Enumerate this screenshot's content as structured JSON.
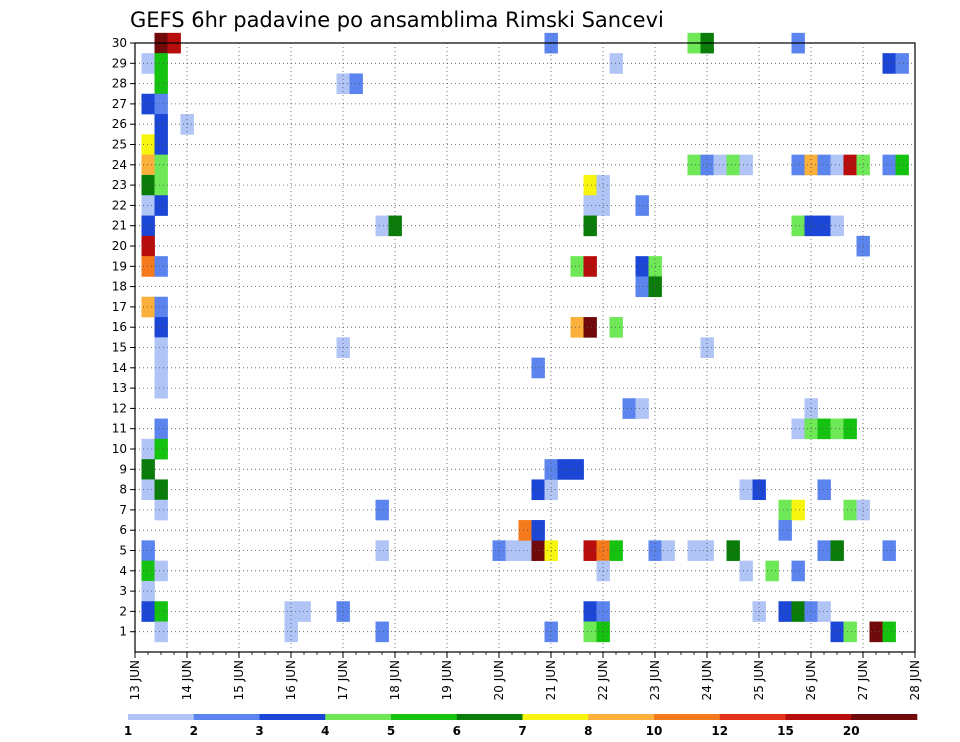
{
  "chart_data": {
    "type": "heatmap",
    "title": "GEFS 6hr padavine po ansamblima Rimski Sancevi",
    "x_tick_labels": [
      "13 JUN",
      "14 JUN",
      "15 JUN",
      "16 JUN",
      "17 JUN",
      "18 JUN",
      "19 JUN",
      "20 JUN",
      "21 JUN",
      "22 JUN",
      "23 JUN",
      "24 JUN",
      "25 JUN",
      "26 JUN",
      "27 JUN",
      "28 JUN"
    ],
    "y_tick_labels": [
      "1",
      "2",
      "3",
      "4",
      "5",
      "6",
      "7",
      "8",
      "9",
      "10",
      "11",
      "12",
      "13",
      "14",
      "15",
      "16",
      "17",
      "18",
      "19",
      "20",
      "21",
      "22",
      "23",
      "24",
      "25",
      "26",
      "27",
      "28",
      "29",
      "30"
    ],
    "xlim": [
      "2022-06-13T00",
      "2022-06-28T00"
    ],
    "time_step_hours": 6,
    "ylim": [
      0,
      30
    ],
    "grid": true,
    "colorbar": {
      "labels": [
        "1",
        "2",
        "3",
        "4",
        "5",
        "6",
        "7",
        "8",
        "10",
        "12",
        "15",
        "20"
      ],
      "bounds": [
        1,
        2,
        3,
        4,
        5,
        6,
        7,
        8,
        10,
        12,
        15,
        20,
        25
      ],
      "colors": [
        "#b0c4f5",
        "#5b84ee",
        "#1b46d6",
        "#6ee856",
        "#16c210",
        "#0a7c0a",
        "#f7f40f",
        "#fbb03b",
        "#f57a1b",
        "#e5321b",
        "#b80d0d",
        "#700a0a"
      ]
    },
    "cells": [
      {
        "t": "2022-06-13T12",
        "m": 30,
        "c": 11
      },
      {
        "t": "2022-06-13T18",
        "m": 30,
        "c": 10
      },
      {
        "t": "2022-06-13T06",
        "m": 29,
        "c": 0
      },
      {
        "t": "2022-06-13T12",
        "m": 29,
        "c": 4
      },
      {
        "t": "2022-06-13T12",
        "m": 28,
        "c": 4
      },
      {
        "t": "2022-06-13T06",
        "m": 27,
        "c": 2
      },
      {
        "t": "2022-06-13T12",
        "m": 27,
        "c": 1
      },
      {
        "t": "2022-06-13T12",
        "m": 26,
        "c": 2
      },
      {
        "t": "2022-06-14T00",
        "m": 26,
        "c": 0
      },
      {
        "t": "2022-06-13T06",
        "m": 25,
        "c": 6
      },
      {
        "t": "2022-06-13T12",
        "m": 25,
        "c": 2
      },
      {
        "t": "2022-06-13T06",
        "m": 24,
        "c": 7
      },
      {
        "t": "2022-06-13T12",
        "m": 24,
        "c": 3
      },
      {
        "t": "2022-06-13T06",
        "m": 23,
        "c": 5
      },
      {
        "t": "2022-06-13T12",
        "m": 23,
        "c": 3
      },
      {
        "t": "2022-06-13T06",
        "m": 22,
        "c": 0
      },
      {
        "t": "2022-06-13T12",
        "m": 22,
        "c": 2
      },
      {
        "t": "2022-06-13T06",
        "m": 21,
        "c": 2
      },
      {
        "t": "2022-06-13T06",
        "m": 20,
        "c": 10
      },
      {
        "t": "2022-06-13T06",
        "m": 19,
        "c": 8
      },
      {
        "t": "2022-06-13T12",
        "m": 19,
        "c": 1
      },
      {
        "t": "2022-06-13T06",
        "m": 17,
        "c": 7
      },
      {
        "t": "2022-06-13T12",
        "m": 17,
        "c": 1
      },
      {
        "t": "2022-06-13T12",
        "m": 16,
        "c": 2
      },
      {
        "t": "2022-06-13T12",
        "m": 15,
        "c": 0
      },
      {
        "t": "2022-06-13T12",
        "m": 14,
        "c": 0
      },
      {
        "t": "2022-06-13T12",
        "m": 13,
        "c": 0
      },
      {
        "t": "2022-06-13T12",
        "m": 11,
        "c": 1
      },
      {
        "t": "2022-06-13T06",
        "m": 10,
        "c": 0
      },
      {
        "t": "2022-06-13T12",
        "m": 10,
        "c": 4
      },
      {
        "t": "2022-06-13T06",
        "m": 9,
        "c": 5
      },
      {
        "t": "2022-06-13T06",
        "m": 8,
        "c": 0
      },
      {
        "t": "2022-06-13T12",
        "m": 8,
        "c": 5
      },
      {
        "t": "2022-06-13T12",
        "m": 7,
        "c": 0
      },
      {
        "t": "2022-06-13T06",
        "m": 5,
        "c": 1
      },
      {
        "t": "2022-06-13T06",
        "m": 4,
        "c": 4
      },
      {
        "t": "2022-06-13T12",
        "m": 4,
        "c": 0
      },
      {
        "t": "2022-06-13T06",
        "m": 3,
        "c": 0
      },
      {
        "t": "2022-06-13T06",
        "m": 2,
        "c": 2
      },
      {
        "t": "2022-06-13T12",
        "m": 2,
        "c": 4
      },
      {
        "t": "2022-06-13T12",
        "m": 1,
        "c": 0
      },
      {
        "t": "2022-06-16T00",
        "m": 2,
        "c": 0
      },
      {
        "t": "2022-06-16T06",
        "m": 2,
        "c": 0
      },
      {
        "t": "2022-06-16T00",
        "m": 1,
        "c": 0
      },
      {
        "t": "2022-06-17T00",
        "m": 28,
        "c": 0
      },
      {
        "t": "2022-06-17T06",
        "m": 28,
        "c": 1
      },
      {
        "t": "2022-06-17T00",
        "m": 15,
        "c": 0
      },
      {
        "t": "2022-06-17T00",
        "m": 2,
        "c": 1
      },
      {
        "t": "2022-06-17T18",
        "m": 21,
        "c": 0
      },
      {
        "t": "2022-06-18T00",
        "m": 21,
        "c": 5
      },
      {
        "t": "2022-06-17T18",
        "m": 7,
        "c": 1
      },
      {
        "t": "2022-06-17T18",
        "m": 5,
        "c": 0
      },
      {
        "t": "2022-06-17T18",
        "m": 1,
        "c": 1
      },
      {
        "t": "2022-06-20T00",
        "m": 5,
        "c": 1
      },
      {
        "t": "2022-06-20T06",
        "m": 5,
        "c": 0
      },
      {
        "t": "2022-06-20T12",
        "m": 5,
        "c": 0
      },
      {
        "t": "2022-06-20T18",
        "m": 5,
        "c": 11
      },
      {
        "t": "2022-06-21T00",
        "m": 5,
        "c": 6
      },
      {
        "t": "2022-06-20T18",
        "m": 14,
        "c": 1
      },
      {
        "t": "2022-06-20T18",
        "m": 8,
        "c": 2
      },
      {
        "t": "2022-06-21T00",
        "m": 8,
        "c": 0
      },
      {
        "t": "2022-06-20T12",
        "m": 6,
        "c": 8
      },
      {
        "t": "2022-06-20T18",
        "m": 6,
        "c": 2
      },
      {
        "t": "2022-06-21T00",
        "m": 30,
        "c": 1
      },
      {
        "t": "2022-06-21T00",
        "m": 9,
        "c": 1
      },
      {
        "t": "2022-06-21T06",
        "m": 9,
        "c": 2
      },
      {
        "t": "2022-06-21T12",
        "m": 9,
        "c": 2
      },
      {
        "t": "2022-06-21T00",
        "m": 1,
        "c": 1
      },
      {
        "t": "2022-06-21T12",
        "m": 19,
        "c": 3
      },
      {
        "t": "2022-06-21T18",
        "m": 19,
        "c": 10
      },
      {
        "t": "2022-06-21T12",
        "m": 16,
        "c": 7
      },
      {
        "t": "2022-06-21T18",
        "m": 16,
        "c": 11
      },
      {
        "t": "2022-06-21T18",
        "m": 23,
        "c": 6
      },
      {
        "t": "2022-06-22T00",
        "m": 23,
        "c": 0
      },
      {
        "t": "2022-06-21T18",
        "m": 22,
        "c": 0
      },
      {
        "t": "2022-06-22T00",
        "m": 22,
        "c": 0
      },
      {
        "t": "2022-06-21T18",
        "m": 21,
        "c": 5
      },
      {
        "t": "2022-06-21T18",
        "m": 5,
        "c": 10
      },
      {
        "t": "2022-06-22T00",
        "m": 5,
        "c": 8
      },
      {
        "t": "2022-06-22T06",
        "m": 5,
        "c": 4
      },
      {
        "t": "2022-06-22T00",
        "m": 4,
        "c": 0
      },
      {
        "t": "2022-06-21T18",
        "m": 2,
        "c": 2
      },
      {
        "t": "2022-06-22T00",
        "m": 2,
        "c": 1
      },
      {
        "t": "2022-06-21T18",
        "m": 1,
        "c": 3
      },
      {
        "t": "2022-06-22T00",
        "m": 1,
        "c": 4
      },
      {
        "t": "2022-06-22T06",
        "m": 29,
        "c": 0
      },
      {
        "t": "2022-06-22T06",
        "m": 16,
        "c": 3
      },
      {
        "t": "2022-06-22T12",
        "m": 12,
        "c": 1
      },
      {
        "t": "2022-06-22T18",
        "m": 12,
        "c": 0
      },
      {
        "t": "2022-06-22T18",
        "m": 22,
        "c": 1
      },
      {
        "t": "2022-06-22T18",
        "m": 19,
        "c": 2
      },
      {
        "t": "2022-06-23T00",
        "m": 19,
        "c": 3
      },
      {
        "t": "2022-06-22T18",
        "m": 18,
        "c": 1
      },
      {
        "t": "2022-06-23T00",
        "m": 18,
        "c": 5
      },
      {
        "t": "2022-06-23T00",
        "m": 5,
        "c": 1
      },
      {
        "t": "2022-06-23T06",
        "m": 5,
        "c": 0
      },
      {
        "t": "2022-06-23T18",
        "m": 30,
        "c": 3
      },
      {
        "t": "2022-06-24T00",
        "m": 30,
        "c": 5
      },
      {
        "t": "2022-06-23T18",
        "m": 24,
        "c": 3
      },
      {
        "t": "2022-06-24T00",
        "m": 24,
        "c": 1
      },
      {
        "t": "2022-06-24T06",
        "m": 24,
        "c": 0
      },
      {
        "t": "2022-06-24T12",
        "m": 24,
        "c": 3
      },
      {
        "t": "2022-06-24T18",
        "m": 24,
        "c": 0
      },
      {
        "t": "2022-06-24T00",
        "m": 15,
        "c": 0
      },
      {
        "t": "2022-06-23T18",
        "m": 5,
        "c": 0
      },
      {
        "t": "2022-06-24T00",
        "m": 5,
        "c": 0
      },
      {
        "t": "2022-06-24T12",
        "m": 5,
        "c": 5
      },
      {
        "t": "2022-06-24T18",
        "m": 8,
        "c": 0
      },
      {
        "t": "2022-06-25T00",
        "m": 8,
        "c": 2
      },
      {
        "t": "2022-06-24T18",
        "m": 4,
        "c": 0
      },
      {
        "t": "2022-06-25T00",
        "m": 2,
        "c": 0
      },
      {
        "t": "2022-06-25T06",
        "m": 4,
        "c": 3
      },
      {
        "t": "2022-06-25T12",
        "m": 7,
        "c": 3
      },
      {
        "t": "2022-06-25T18",
        "m": 7,
        "c": 6
      },
      {
        "t": "2022-06-25T12",
        "m": 6,
        "c": 1
      },
      {
        "t": "2022-06-25T12",
        "m": 2,
        "c": 2
      },
      {
        "t": "2022-06-25T18",
        "m": 2,
        "c": 5
      },
      {
        "t": "2022-06-26T00",
        "m": 2,
        "c": 1
      },
      {
        "t": "2022-06-26T06",
        "m": 2,
        "c": 0
      },
      {
        "t": "2022-06-25T18",
        "m": 30,
        "c": 1
      },
      {
        "t": "2022-06-25T18",
        "m": 24,
        "c": 1
      },
      {
        "t": "2022-06-26T00",
        "m": 24,
        "c": 7
      },
      {
        "t": "2022-06-26T06",
        "m": 24,
        "c": 1
      },
      {
        "t": "2022-06-26T12",
        "m": 24,
        "c": 0
      },
      {
        "t": "2022-06-26T18",
        "m": 24,
        "c": 10
      },
      {
        "t": "2022-06-27T00",
        "m": 24,
        "c": 3
      },
      {
        "t": "2022-06-27T12",
        "m": 24,
        "c": 1
      },
      {
        "t": "2022-06-27T18",
        "m": 24,
        "c": 4
      },
      {
        "t": "2022-06-25T18",
        "m": 21,
        "c": 3
      },
      {
        "t": "2022-06-26T00",
        "m": 21,
        "c": 2
      },
      {
        "t": "2022-06-26T06",
        "m": 21,
        "c": 2
      },
      {
        "t": "2022-06-26T12",
        "m": 21,
        "c": 0
      },
      {
        "t": "2022-06-27T00",
        "m": 20,
        "c": 1
      },
      {
        "t": "2022-06-26T00",
        "m": 12,
        "c": 0
      },
      {
        "t": "2022-06-25T18",
        "m": 11,
        "c": 0
      },
      {
        "t": "2022-06-26T00",
        "m": 11,
        "c": 3
      },
      {
        "t": "2022-06-26T06",
        "m": 11,
        "c": 4
      },
      {
        "t": "2022-06-26T12",
        "m": 11,
        "c": 3
      },
      {
        "t": "2022-06-26T18",
        "m": 11,
        "c": 4
      },
      {
        "t": "2022-06-26T06",
        "m": 8,
        "c": 1
      },
      {
        "t": "2022-06-26T18",
        "m": 7,
        "c": 3
      },
      {
        "t": "2022-06-27T00",
        "m": 7,
        "c": 0
      },
      {
        "t": "2022-06-26T06",
        "m": 5,
        "c": 1
      },
      {
        "t": "2022-06-26T12",
        "m": 5,
        "c": 5
      },
      {
        "t": "2022-06-27T12",
        "m": 5,
        "c": 1
      },
      {
        "t": "2022-06-25T18",
        "m": 4,
        "c": 1
      },
      {
        "t": "2022-06-26T12",
        "m": 1,
        "c": 2
      },
      {
        "t": "2022-06-26T18",
        "m": 1,
        "c": 3
      },
      {
        "t": "2022-06-27T06",
        "m": 1,
        "c": 11
      },
      {
        "t": "2022-06-27T12",
        "m": 1,
        "c": 4
      },
      {
        "t": "2022-06-27T12",
        "m": 29,
        "c": 2
      },
      {
        "t": "2022-06-27T18",
        "m": 29,
        "c": 1
      }
    ]
  }
}
